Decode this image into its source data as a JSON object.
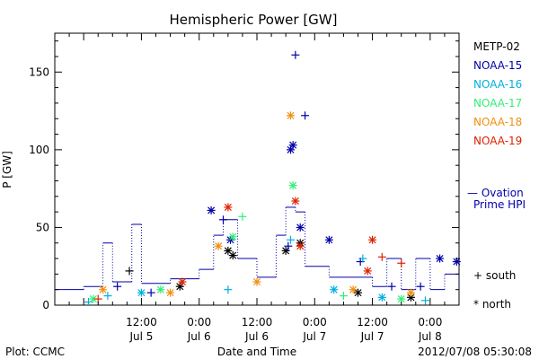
{
  "chart_data": {
    "type": "scatter",
    "title": "Hemispheric Power [GW]",
    "xlabel": "Date and Time",
    "ylabel": "P [GW]",
    "ylim": [
      0,
      175
    ],
    "yticks": [
      0,
      50,
      100,
      150
    ],
    "xlim": [
      "2012-07-04 18:00",
      "2012-07-08 06:00"
    ],
    "xticks": [
      {
        "x": "2012-07-05 12:00",
        "label1": "12:00",
        "label2": "Jul 5"
      },
      {
        "x": "2012-07-06 00:00",
        "label1": "0:00",
        "label2": "Jul 6"
      },
      {
        "x": "2012-07-06 12:00",
        "label1": "12:00",
        "label2": "Jul 6"
      },
      {
        "x": "2012-07-07 00:00",
        "label1": "0:00",
        "label2": "Jul 7"
      },
      {
        "x": "2012-07-07 12:00",
        "label1": "12:00",
        "label2": "Jul 7"
      },
      {
        "x": "2012-07-08 00:00",
        "label1": "0:00",
        "label2": "Jul 8"
      }
    ],
    "legend_position": "right",
    "series": [
      {
        "name": "METP-02",
        "color": "#000000",
        "points": [
          {
            "t": "2012-07-05 09:30",
            "v": 22,
            "m": "plus"
          },
          {
            "t": "2012-07-05 20:00",
            "v": 12,
            "m": "star"
          },
          {
            "t": "2012-07-06 06:00",
            "v": 35,
            "m": "star"
          },
          {
            "t": "2012-07-06 07:00",
            "v": 32,
            "m": "star"
          },
          {
            "t": "2012-07-06 18:00",
            "v": 35,
            "m": "star"
          },
          {
            "t": "2012-07-06 21:00",
            "v": 40,
            "m": "star"
          },
          {
            "t": "2012-07-07 09:00",
            "v": 8,
            "m": "star"
          },
          {
            "t": "2012-07-07 20:00",
            "v": 5,
            "m": "star"
          }
        ]
      },
      {
        "name": "NOAA-15",
        "color": "#0000aa",
        "points": [
          {
            "t": "2012-07-05 07:00",
            "v": 12,
            "m": "plus"
          },
          {
            "t": "2012-07-05 14:00",
            "v": 8,
            "m": "plus"
          },
          {
            "t": "2012-07-06 02:30",
            "v": 61,
            "m": "star"
          },
          {
            "t": "2012-07-06 05:00",
            "v": 55,
            "m": "plus"
          },
          {
            "t": "2012-07-06 06:30",
            "v": 42,
            "m": "star"
          },
          {
            "t": "2012-07-06 18:30",
            "v": 38,
            "m": "plus"
          },
          {
            "t": "2012-07-06 19:00",
            "v": 100,
            "m": "star"
          },
          {
            "t": "2012-07-06 19:30",
            "v": 103,
            "m": "star"
          },
          {
            "t": "2012-07-06 20:00",
            "v": 161,
            "m": "plus"
          },
          {
            "t": "2012-07-06 21:00",
            "v": 50,
            "m": "star"
          },
          {
            "t": "2012-07-06 22:00",
            "v": 122,
            "m": "plus"
          },
          {
            "t": "2012-07-07 03:00",
            "v": 42,
            "m": "star"
          },
          {
            "t": "2012-07-07 09:30",
            "v": 28,
            "m": "plus"
          },
          {
            "t": "2012-07-07 16:00",
            "v": 12,
            "m": "plus"
          },
          {
            "t": "2012-07-07 22:00",
            "v": 12,
            "m": "plus"
          },
          {
            "t": "2012-07-08 02:00",
            "v": 30,
            "m": "star"
          },
          {
            "t": "2012-07-08 05:30",
            "v": 28,
            "m": "star"
          }
        ]
      },
      {
        "name": "NOAA-16",
        "color": "#00b0e0",
        "points": [
          {
            "t": "2012-07-05 01:00",
            "v": 2,
            "m": "plus"
          },
          {
            "t": "2012-07-05 05:00",
            "v": 6,
            "m": "plus"
          },
          {
            "t": "2012-07-05 12:00",
            "v": 8,
            "m": "star"
          },
          {
            "t": "2012-07-06 06:00",
            "v": 10,
            "m": "plus"
          },
          {
            "t": "2012-07-06 19:00",
            "v": 42,
            "m": "plus"
          },
          {
            "t": "2012-07-07 04:00",
            "v": 10,
            "m": "star"
          },
          {
            "t": "2012-07-07 10:00",
            "v": 30,
            "m": "plus"
          },
          {
            "t": "2012-07-07 14:00",
            "v": 5,
            "m": "star"
          },
          {
            "t": "2012-07-07 23:00",
            "v": 3,
            "m": "plus"
          }
        ]
      },
      {
        "name": "NOAA-17",
        "color": "#33ee77",
        "points": [
          {
            "t": "2012-07-05 02:00",
            "v": 4,
            "m": "star"
          },
          {
            "t": "2012-07-05 16:00",
            "v": 10,
            "m": "star"
          },
          {
            "t": "2012-07-06 07:00",
            "v": 44,
            "m": "star"
          },
          {
            "t": "2012-07-06 09:00",
            "v": 57,
            "m": "plus"
          },
          {
            "t": "2012-07-06 19:30",
            "v": 77,
            "m": "star"
          },
          {
            "t": "2012-07-07 06:00",
            "v": 6,
            "m": "plus"
          },
          {
            "t": "2012-07-07 18:00",
            "v": 4,
            "m": "star"
          }
        ]
      },
      {
        "name": "NOAA-18",
        "color": "#f09010",
        "points": [
          {
            "t": "2012-07-05 04:00",
            "v": 10,
            "m": "star"
          },
          {
            "t": "2012-07-05 18:00",
            "v": 8,
            "m": "star"
          },
          {
            "t": "2012-07-06 04:00",
            "v": 38,
            "m": "star"
          },
          {
            "t": "2012-07-06 12:00",
            "v": 15,
            "m": "star"
          },
          {
            "t": "2012-07-06 19:00",
            "v": 122,
            "m": "star"
          },
          {
            "t": "2012-07-07 08:00",
            "v": 10,
            "m": "star"
          },
          {
            "t": "2012-07-07 20:00",
            "v": 8,
            "m": "star"
          }
        ]
      },
      {
        "name": "NOAA-19",
        "color": "#dd2200",
        "points": [
          {
            "t": "2012-07-05 03:00",
            "v": 4,
            "m": "plus"
          },
          {
            "t": "2012-07-05 20:30",
            "v": 15,
            "m": "star"
          },
          {
            "t": "2012-07-06 06:00",
            "v": 63,
            "m": "star"
          },
          {
            "t": "2012-07-06 20:00",
            "v": 67,
            "m": "star"
          },
          {
            "t": "2012-07-06 21:00",
            "v": 38,
            "m": "star"
          },
          {
            "t": "2012-07-07 11:00",
            "v": 22,
            "m": "star"
          },
          {
            "t": "2012-07-07 12:00",
            "v": 42,
            "m": "star"
          },
          {
            "t": "2012-07-07 14:00",
            "v": 31,
            "m": "plus"
          },
          {
            "t": "2012-07-07 18:00",
            "v": 27,
            "m": "plus"
          }
        ]
      },
      {
        "name": "Ovation Prime HPI",
        "color": "#0000aa",
        "style": "dotted",
        "points": [
          {
            "t": "2012-07-04 18:00",
            "v": 10
          },
          {
            "t": "2012-07-05 00:00",
            "v": 12
          },
          {
            "t": "2012-07-05 04:00",
            "v": 40
          },
          {
            "t": "2012-07-05 06:00",
            "v": 15
          },
          {
            "t": "2012-07-05 10:00",
            "v": 52
          },
          {
            "t": "2012-07-05 12:00",
            "v": 14
          },
          {
            "t": "2012-07-05 18:00",
            "v": 17
          },
          {
            "t": "2012-07-06 00:00",
            "v": 23
          },
          {
            "t": "2012-07-06 03:00",
            "v": 45
          },
          {
            "t": "2012-07-06 05:00",
            "v": 55
          },
          {
            "t": "2012-07-06 08:00",
            "v": 30
          },
          {
            "t": "2012-07-06 12:00",
            "v": 18
          },
          {
            "t": "2012-07-06 16:00",
            "v": 45
          },
          {
            "t": "2012-07-06 18:00",
            "v": 63
          },
          {
            "t": "2012-07-06 20:00",
            "v": 60
          },
          {
            "t": "2012-07-06 22:00",
            "v": 25
          },
          {
            "t": "2012-07-07 03:00",
            "v": 18
          },
          {
            "t": "2012-07-07 12:00",
            "v": 12
          },
          {
            "t": "2012-07-07 15:00",
            "v": 30
          },
          {
            "t": "2012-07-07 18:00",
            "v": 10
          },
          {
            "t": "2012-07-07 21:00",
            "v": 30
          },
          {
            "t": "2012-07-08 00:00",
            "v": 10
          },
          {
            "t": "2012-07-08 03:00",
            "v": 20
          },
          {
            "t": "2012-07-08 06:00",
            "v": 8
          }
        ]
      }
    ],
    "legend_entries": [
      "METP-02",
      "NOAA-15",
      "NOAA-16",
      "NOAA-17",
      "NOAA-18",
      "NOAA-19"
    ],
    "ovation_legend": {
      "line1": "— Ovation",
      "line2": "Prime HPI"
    },
    "marker_legend": {
      "south": "+ south",
      "north": "* north"
    }
  },
  "footer": {
    "left": "Plot: CCMC",
    "right": "2012/07/08 05:30:08"
  }
}
